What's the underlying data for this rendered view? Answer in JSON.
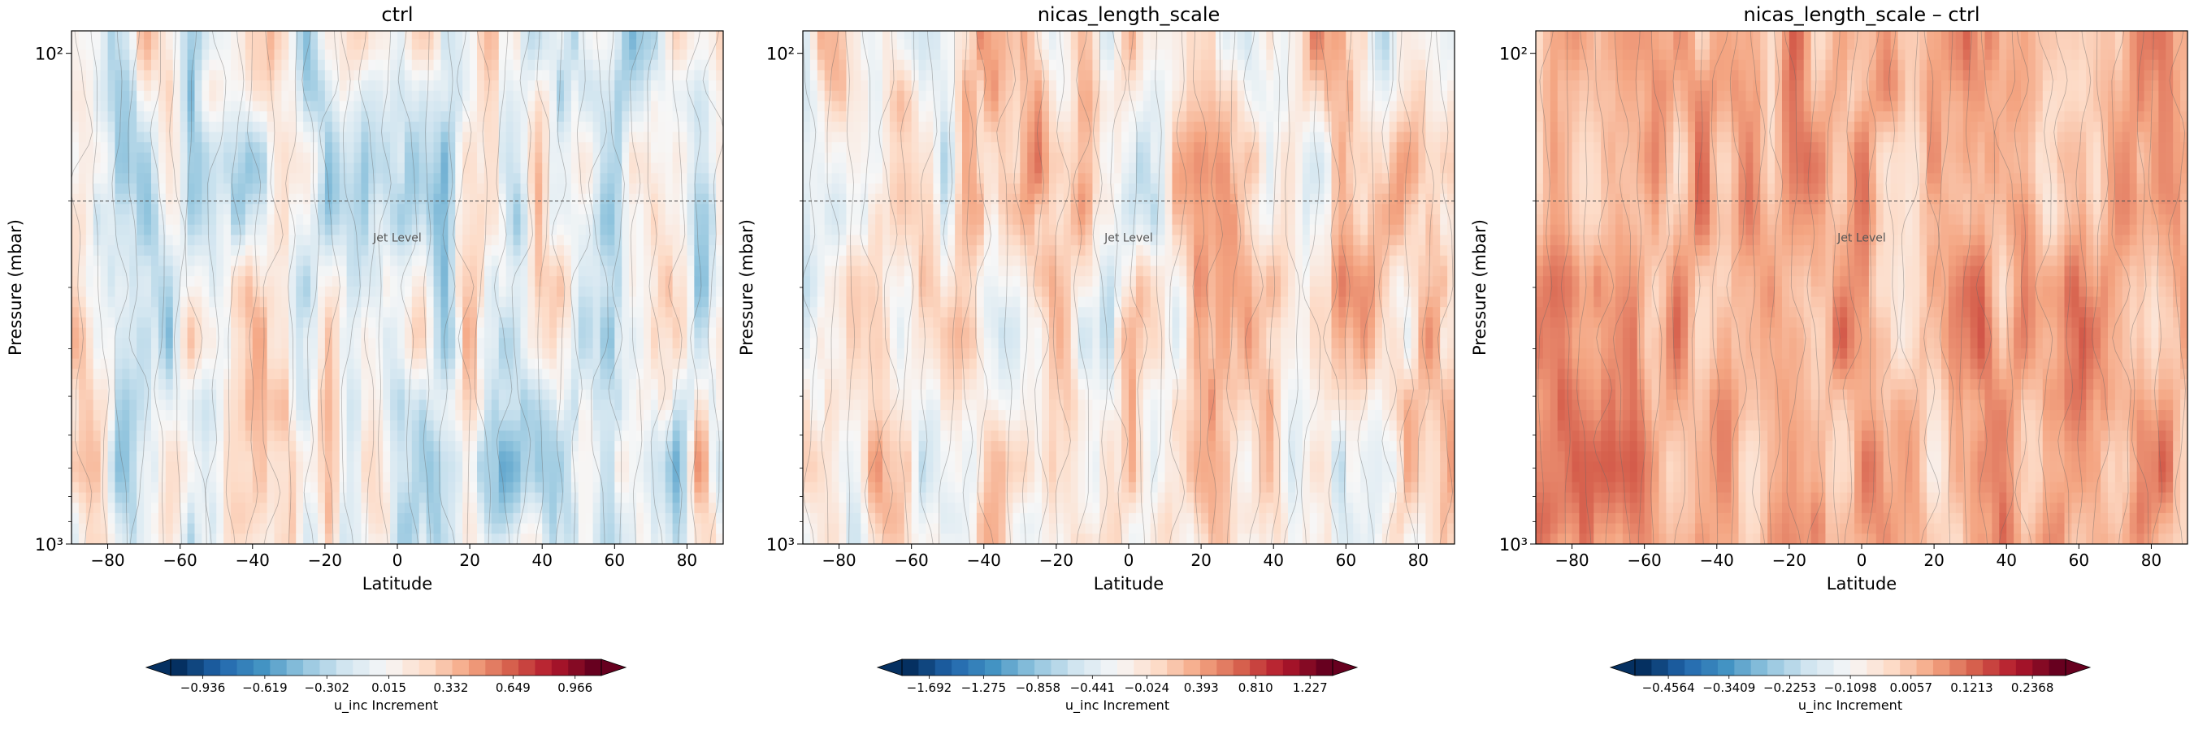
{
  "chart_data": [
    {
      "type": "heatmap",
      "title": "ctrl",
      "xlabel": "Latitude",
      "ylabel": "Pressure (mbar)",
      "x_ticks": [
        -80,
        -60,
        -40,
        -20,
        0,
        20,
        40,
        60,
        80
      ],
      "xlim": [
        -90,
        90
      ],
      "y_scale": "log",
      "y_inverted": true,
      "y_ticks": [
        {
          "value": 100,
          "label": "10²"
        },
        {
          "value": 1000,
          "label": "10³"
        }
      ],
      "ylim": [
        1000,
        90
      ],
      "reference_line": {
        "pressure": 200,
        "label": "Jet Level",
        "style": "dashed"
      },
      "colormap": "RdBu_r",
      "colorbar": {
        "label": "u_inc Increment",
        "ticks": [
          -0.936,
          -0.619,
          -0.302,
          0.015,
          0.332,
          0.649,
          0.966
        ],
        "range": [
          -1.1,
          1.1
        ],
        "extend": "both"
      },
      "mean_level": -0.02,
      "amplitude": 0.95
    },
    {
      "type": "heatmap",
      "title": "nicas_length_scale",
      "xlabel": "Latitude",
      "ylabel": "Pressure (mbar)",
      "x_ticks": [
        -80,
        -60,
        -40,
        -20,
        0,
        20,
        40,
        60,
        80
      ],
      "xlim": [
        -90,
        90
      ],
      "y_scale": "log",
      "y_inverted": true,
      "y_ticks": [
        {
          "value": 100,
          "label": "10²"
        },
        {
          "value": 1000,
          "label": "10³"
        }
      ],
      "ylim": [
        1000,
        90
      ],
      "reference_line": {
        "pressure": 200,
        "label": "Jet Level",
        "style": "dashed"
      },
      "colormap": "RdBu_r",
      "colorbar": {
        "label": "u_inc Increment",
        "ticks": [
          -1.692,
          -1.275,
          -0.858,
          -0.441,
          -0.024,
          0.393,
          0.81,
          1.227
        ],
        "range": [
          -1.9,
          1.4
        ],
        "extend": "both"
      },
      "mean_level": 0.18,
      "amplitude": 0.85
    },
    {
      "type": "heatmap",
      "title": "nicas_length_scale – ctrl",
      "xlabel": "Latitude",
      "ylabel": "Pressure (mbar)",
      "x_ticks": [
        -80,
        -60,
        -40,
        -20,
        0,
        20,
        40,
        60,
        80
      ],
      "xlim": [
        -90,
        90
      ],
      "y_scale": "log",
      "y_inverted": true,
      "y_ticks": [
        {
          "value": 100,
          "label": "10²"
        },
        {
          "value": 1000,
          "label": "10³"
        }
      ],
      "ylim": [
        1000,
        90
      ],
      "reference_line": {
        "pressure": 200,
        "label": "Jet Level",
        "style": "dashed"
      },
      "colormap": "RdBu_r",
      "colorbar": {
        "label": "u_inc Increment",
        "ticks": [
          -0.4564,
          -0.3409,
          -0.2253,
          -0.1098,
          0.0057,
          0.1213,
          0.2368
        ],
        "range": [
          -0.52,
          0.3
        ],
        "extend": "both"
      },
      "mean_level": 0.55,
      "amplitude": 0.55
    }
  ]
}
